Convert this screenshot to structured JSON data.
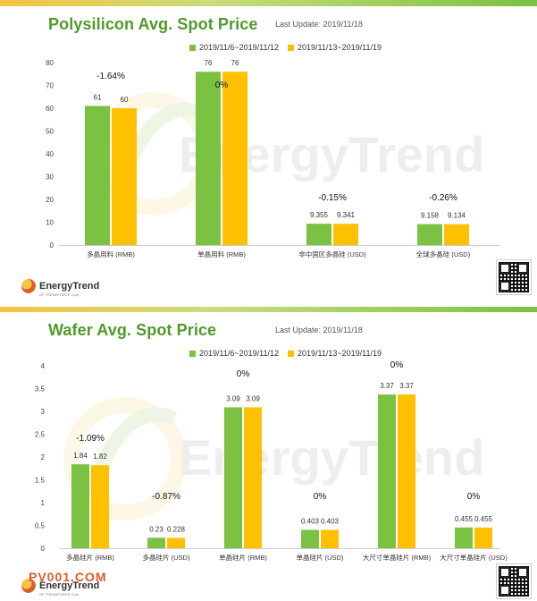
{
  "chart_data": [
    {
      "type": "bar",
      "title": "Polysilicon Avg. Spot Price",
      "update_text": "Last Update: 2019/11/18",
      "categories": [
        "多晶用料 (RMB)",
        "单晶用料 (RMB)",
        "非中国区多晶硅 (USD)",
        "全球多晶硅 (USD)"
      ],
      "series": [
        {
          "name": "2019/11/6~2019/11/12",
          "color": "#7bc142",
          "values": [
            61,
            76,
            9.355,
            9.158
          ],
          "labels": [
            "61",
            "76",
            "9.355",
            "9.158"
          ]
        },
        {
          "name": "2019/11/13~2019/11/19",
          "color": "#ffc000",
          "values": [
            60,
            76,
            9.341,
            9.134
          ],
          "labels": [
            "60",
            "76",
            "9.341",
            "9.134"
          ]
        }
      ],
      "changes": [
        "-1.64%",
        "0%",
        "-0.15%",
        "-0.26%"
      ],
      "yticks": [
        "0",
        "10",
        "20",
        "30",
        "40",
        "50",
        "60",
        "70",
        "80"
      ],
      "ylim": [
        0,
        80
      ]
    },
    {
      "type": "bar",
      "title": "Wafer Avg. Spot Price",
      "update_text": "Last Update: 2019/11/18",
      "categories": [
        "多晶硅片 (RMB)",
        "多晶硅片 (USD)",
        "单晶硅片 (RMB)",
        "单晶硅片 (USD)",
        "大尺寸单晶硅片 (RMB)",
        "大尺寸单晶硅片 (USD)"
      ],
      "series": [
        {
          "name": "2019/11/6~2019/11/12",
          "color": "#7bc142",
          "values": [
            1.84,
            0.23,
            3.09,
            0.403,
            3.37,
            0.455
          ],
          "labels": [
            "1.84",
            "0.23",
            "3.09",
            "0.403",
            "3.37",
            "0.455"
          ]
        },
        {
          "name": "2019/11/13~2019/11/19",
          "color": "#ffc000",
          "values": [
            1.82,
            0.228,
            3.09,
            0.403,
            3.37,
            0.455
          ],
          "labels": [
            "1.82",
            "0.228",
            "3.09",
            "0.403",
            "3.37",
            "0.455"
          ]
        }
      ],
      "changes": [
        "-1.09%",
        "-0.87%",
        "0%",
        "0%",
        "0%",
        "0%"
      ],
      "yticks": [
        "0",
        "0.5",
        "1",
        "1.5",
        "2",
        "2.5",
        "3",
        "3.5",
        "4"
      ],
      "ylim": [
        0,
        4
      ]
    }
  ],
  "watermark": "EnergyTrend",
  "logo": {
    "name": "EnergyTrend",
    "sub": "OF TRENDFORCE Corp."
  },
  "site_watermark": "PV001.COM"
}
